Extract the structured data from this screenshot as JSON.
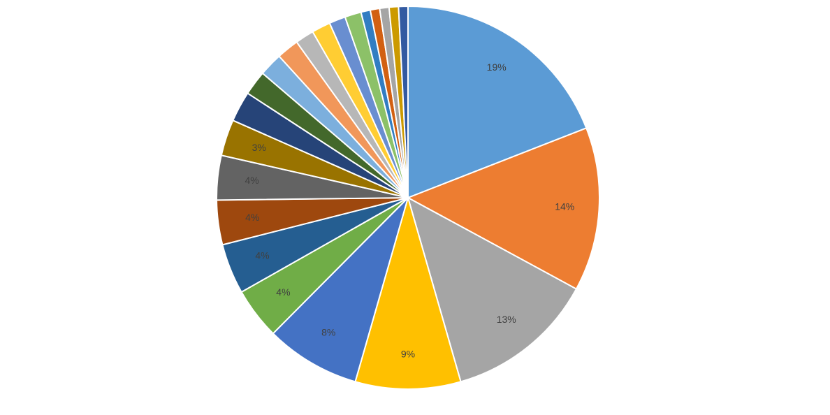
{
  "chart_data": {
    "type": "pie",
    "start_angle_deg": 0,
    "direction": "clockwise",
    "legend": "none",
    "slices": [
      {
        "value": 19.3,
        "label": "19%",
        "color": "#5B9BD5"
      },
      {
        "value": 14.0,
        "label": "14%",
        "color": "#ED7D31"
      },
      {
        "value": 12.8,
        "label": "13%",
        "color": "#A5A5A5"
      },
      {
        "value": 9.0,
        "label": "9%",
        "color": "#FFC000"
      },
      {
        "value": 8.1,
        "label": "8%",
        "color": "#4472C4"
      },
      {
        "value": 4.4,
        "label": "4%",
        "color": "#70AD47"
      },
      {
        "value": 4.3,
        "label": "4%",
        "color": "#255E91"
      },
      {
        "value": 3.8,
        "label": "4%",
        "color": "#9E480E"
      },
      {
        "value": 3.8,
        "label": "4%",
        "color": "#636363"
      },
      {
        "value": 3.1,
        "label": "3%",
        "color": "#997300"
      },
      {
        "value": 2.6,
        "label": "",
        "color": "#264478"
      },
      {
        "value": 2.1,
        "label": "",
        "color": "#43682B"
      },
      {
        "value": 2.0,
        "label": "",
        "color": "#7CAFDD"
      },
      {
        "value": 1.9,
        "label": "",
        "color": "#F1975A"
      },
      {
        "value": 1.6,
        "label": "",
        "color": "#B7B7B7"
      },
      {
        "value": 1.6,
        "label": "",
        "color": "#FFCD33"
      },
      {
        "value": 1.4,
        "label": "",
        "color": "#698ED0"
      },
      {
        "value": 1.4,
        "label": "",
        "color": "#8CC168"
      },
      {
        "value": 0.8,
        "label": "",
        "color": "#327DC2"
      },
      {
        "value": 0.8,
        "label": "",
        "color": "#D26012"
      },
      {
        "value": 0.8,
        "label": "",
        "color": "#A5A5A5"
      },
      {
        "value": 0.8,
        "label": "",
        "color": "#CC9A00"
      },
      {
        "value": 0.8,
        "label": "",
        "color": "#335AA1"
      }
    ]
  }
}
